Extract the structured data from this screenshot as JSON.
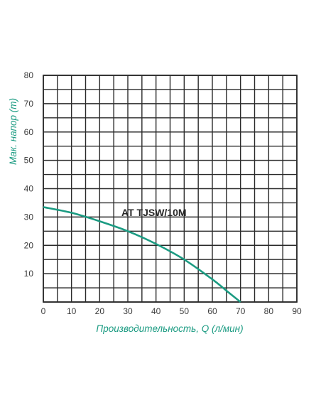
{
  "chart_data": {
    "type": "line",
    "xlabel": "Производительность, Q (л/мин)",
    "ylabel": "Мак. напор (m)",
    "xlim": [
      0,
      90
    ],
    "ylim": [
      0,
      80
    ],
    "x_ticks": [
      "0",
      "10",
      "20",
      "30",
      "40",
      "50",
      "60",
      "70",
      "80",
      "90"
    ],
    "y_ticks": [
      "10",
      "20",
      "30",
      "40",
      "50",
      "60",
      "70",
      "80"
    ],
    "grid": true,
    "series": [
      {
        "name": "AT TJSW/10M",
        "color": "#1b9b82",
        "x": [
          0,
          10,
          20,
          30,
          40,
          50,
          60,
          65,
          70
        ],
        "y": [
          33.5,
          31.5,
          28.5,
          25,
          20.5,
          15,
          8,
          4,
          0
        ]
      }
    ],
    "axis_label_color": "#1b9b82",
    "grid_color": "#2a2a2a"
  }
}
